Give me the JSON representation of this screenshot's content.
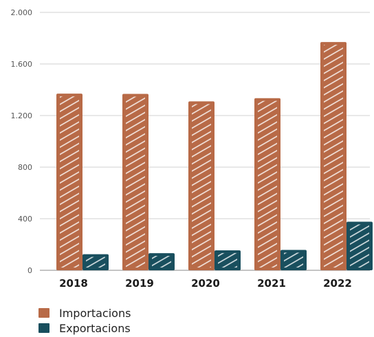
{
  "chart_data": {
    "type": "bar",
    "categories": [
      "2018",
      "2019",
      "2020",
      "2021",
      "2022"
    ],
    "series": [
      {
        "name": "Importacions",
        "values": [
          1370,
          1368,
          1310,
          1335,
          1770
        ],
        "color": "#b86a47"
      },
      {
        "name": "Exportacions",
        "values": [
          125,
          133,
          155,
          158,
          377
        ],
        "color": "#194f5e"
      }
    ],
    "ylim": [
      0,
      2000
    ],
    "yticks": [
      0,
      400,
      800,
      1200,
      1600,
      2000
    ],
    "ytick_labels": [
      "0",
      "400",
      "800",
      "1.200",
      "1.600",
      "2.000"
    ],
    "grid": true,
    "legend_position": "bottom-left",
    "fill_style": "hand-drawn hatch"
  }
}
